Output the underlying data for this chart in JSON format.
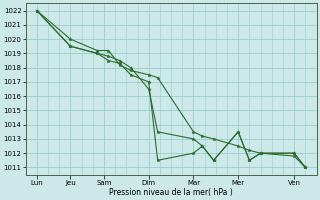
{
  "xlabel": "Pression niveau de la mer( hPa )",
  "bg_color": "#cce8e8",
  "grid_color": "#99cccc",
  "line_color": "#2d6b2d",
  "marker_color": "#2d6b2d",
  "ylim_min": 1010.5,
  "ylim_max": 1022.5,
  "yticks": [
    1011,
    1012,
    1013,
    1014,
    1015,
    1016,
    1017,
    1018,
    1019,
    1020,
    1021,
    1022
  ],
  "xlim_min": 0,
  "xlim_max": 13,
  "day_positions": [
    0.5,
    2.0,
    3.5,
    5.5,
    7.5,
    9.5,
    12.0
  ],
  "day_labels": [
    "Lun",
    "Jeu",
    "Sam",
    "Dim",
    "Mar",
    "Mer",
    "Ven"
  ],
  "series1_x": [
    0.5,
    2.0,
    3.2,
    3.7,
    4.2,
    4.7,
    5.5,
    5.9,
    7.5,
    7.9,
    8.4,
    9.5,
    10.0,
    10.5,
    12.0,
    12.5
  ],
  "series1_y": [
    1022.0,
    1020.0,
    1019.2,
    1019.2,
    1018.2,
    1017.8,
    1017.5,
    1017.3,
    1013.5,
    1013.2,
    1013.0,
    1012.5,
    1012.2,
    1012.0,
    1011.8,
    1011.0
  ],
  "series2_x": [
    0.5,
    2.0,
    3.2,
    3.7,
    4.2,
    4.7,
    5.5,
    5.9,
    7.5,
    7.9,
    8.4,
    9.5,
    10.0,
    10.5,
    12.0,
    12.5
  ],
  "series2_y": [
    1022.0,
    1019.5,
    1019.0,
    1018.5,
    1018.3,
    1017.5,
    1017.0,
    1011.5,
    1012.0,
    1012.5,
    1011.5,
    1013.5,
    1011.5,
    1012.0,
    1012.0,
    1011.0
  ],
  "series3_x": [
    0.5,
    2.0,
    3.2,
    3.7,
    4.2,
    4.7,
    5.5,
    5.9,
    7.5,
    7.9,
    8.4,
    9.5,
    10.0,
    10.5,
    12.0,
    12.5
  ],
  "series3_y": [
    1022.0,
    1019.5,
    1019.0,
    1018.8,
    1018.5,
    1018.0,
    1016.5,
    1013.5,
    1013.0,
    1012.5,
    1011.5,
    1013.5,
    1011.5,
    1012.0,
    1012.0,
    1011.0
  ],
  "marker_size": 2.5,
  "line_width": 0.8,
  "xlabel_fontsize": 5.5,
  "tick_fontsize": 5.0,
  "spine_color": "#446644"
}
